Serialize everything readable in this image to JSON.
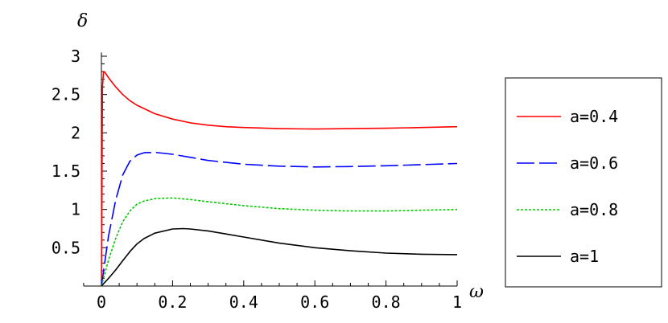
{
  "chart_data": {
    "type": "line",
    "xlabel": "ω",
    "ylabel": "δ",
    "xlim": [
      -0.05,
      1.0
    ],
    "ylim": [
      0.0,
      3.05
    ],
    "x_ticks": [
      0,
      0.2,
      0.4,
      0.6,
      0.8,
      1
    ],
    "x_tick_labels": [
      "0",
      "0.2",
      "0.4",
      "0.6",
      "0.8",
      "1"
    ],
    "y_ticks": [
      0.5,
      1,
      1.5,
      2,
      2.5,
      3
    ],
    "y_tick_labels": [
      "0.5",
      "1",
      "1.5",
      "2",
      "2.5",
      "3"
    ],
    "grid": false,
    "legend": "right",
    "series": [
      {
        "name": "a=0.4",
        "color": "#ff0000",
        "style": "solid",
        "x": [
          0,
          0.003,
          0.006,
          0.01,
          0.02,
          0.04,
          0.06,
          0.08,
          0.1,
          0.15,
          0.2,
          0.25,
          0.3,
          0.35,
          0.4,
          0.5,
          0.6,
          0.7,
          0.8,
          0.9,
          1.0
        ],
        "y": [
          0,
          2.6,
          2.8,
          2.79,
          2.72,
          2.6,
          2.5,
          2.42,
          2.36,
          2.25,
          2.18,
          2.13,
          2.1,
          2.08,
          2.07,
          2.055,
          2.05,
          2.055,
          2.06,
          2.07,
          2.08
        ]
      },
      {
        "name": "a=0.6",
        "color": "#0000ff",
        "style": "dashed",
        "x": [
          0,
          0.02,
          0.04,
          0.06,
          0.08,
          0.1,
          0.12,
          0.15,
          0.2,
          0.25,
          0.3,
          0.4,
          0.5,
          0.6,
          0.7,
          0.8,
          0.9,
          1.0
        ],
        "y": [
          0,
          0.65,
          1.12,
          1.45,
          1.63,
          1.71,
          1.74,
          1.745,
          1.72,
          1.68,
          1.64,
          1.59,
          1.565,
          1.555,
          1.56,
          1.57,
          1.585,
          1.6
        ]
      },
      {
        "name": "a=0.8",
        "color": "#00cc00",
        "style": "dotted",
        "x": [
          0,
          0.02,
          0.04,
          0.06,
          0.08,
          0.1,
          0.12,
          0.15,
          0.2,
          0.25,
          0.3,
          0.4,
          0.5,
          0.6,
          0.7,
          0.8,
          0.9,
          1.0
        ],
        "y": [
          0,
          0.34,
          0.62,
          0.84,
          0.98,
          1.07,
          1.11,
          1.14,
          1.15,
          1.13,
          1.1,
          1.05,
          1.01,
          0.99,
          0.98,
          0.98,
          0.99,
          1.0
        ]
      },
      {
        "name": "a=1",
        "color": "#000000",
        "style": "solid",
        "x": [
          0,
          0.02,
          0.04,
          0.06,
          0.08,
          0.1,
          0.12,
          0.15,
          0.2,
          0.23,
          0.25,
          0.3,
          0.35,
          0.4,
          0.5,
          0.6,
          0.7,
          0.8,
          0.9,
          1.0
        ],
        "y": [
          0,
          0.1,
          0.21,
          0.33,
          0.45,
          0.55,
          0.62,
          0.69,
          0.745,
          0.75,
          0.745,
          0.72,
          0.68,
          0.64,
          0.56,
          0.5,
          0.46,
          0.43,
          0.415,
          0.41
        ]
      }
    ]
  }
}
